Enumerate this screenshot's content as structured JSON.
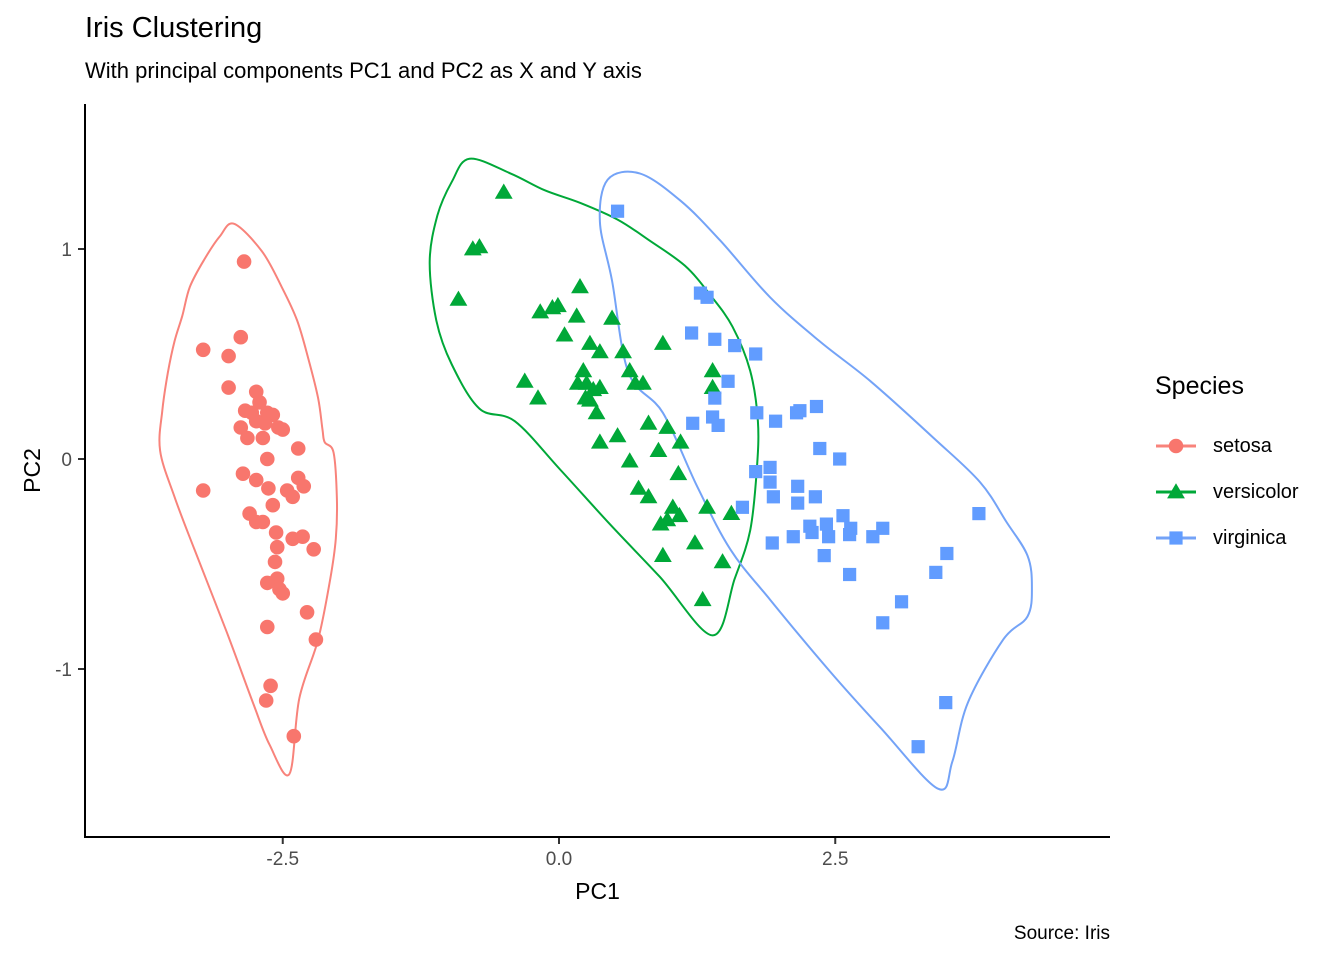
{
  "chart_data": {
    "type": "scatter",
    "title": "Iris Clustering",
    "subtitle": "With principal components PC1 and PC2 as X and Y axis",
    "caption": "Source: Iris",
    "xlabel": "PC1",
    "ylabel": "PC2",
    "xlim": [
      -4.3,
      5.0
    ],
    "ylim": [
      -1.8,
      1.69
    ],
    "x_ticks": {
      "values": [
        -2.5,
        0,
        2.5
      ],
      "labels": [
        "-2.5",
        "0.0",
        "2.5"
      ]
    },
    "y_ticks": {
      "values": [
        -1,
        0,
        1
      ],
      "labels": [
        "-1",
        "0",
        "1"
      ]
    },
    "grid": false,
    "legend_position": "right",
    "legend_title": "Species",
    "series": [
      {
        "name": "setosa",
        "marker": "circle",
        "color": "#F8766D",
        "hull_color": "#F8837B",
        "points": [
          [
            -2.85,
            0.94
          ],
          [
            -2.88,
            0.58
          ],
          [
            -3.22,
            0.52
          ],
          [
            -2.99,
            0.49
          ],
          [
            -2.99,
            0.34
          ],
          [
            -2.74,
            0.32
          ],
          [
            -2.71,
            0.27
          ],
          [
            -2.84,
            0.23
          ],
          [
            -2.78,
            0.22
          ],
          [
            -2.64,
            0.22
          ],
          [
            -2.59,
            0.21
          ],
          [
            -2.74,
            0.18
          ],
          [
            -2.66,
            0.17
          ],
          [
            -2.54,
            0.15
          ],
          [
            -2.88,
            0.15
          ],
          [
            -2.82,
            0.1
          ],
          [
            -2.68,
            0.1
          ],
          [
            -2.5,
            0.14
          ],
          [
            -2.36,
            0.05
          ],
          [
            -2.64,
            0.0
          ],
          [
            -2.86,
            -0.07
          ],
          [
            -2.74,
            -0.1
          ],
          [
            -2.63,
            -0.14
          ],
          [
            -2.36,
            -0.09
          ],
          [
            -2.31,
            -0.13
          ],
          [
            -3.22,
            -0.15
          ],
          [
            -2.46,
            -0.15
          ],
          [
            -2.41,
            -0.18
          ],
          [
            -2.59,
            -0.22
          ],
          [
            -2.8,
            -0.26
          ],
          [
            -2.74,
            -0.3
          ],
          [
            -2.68,
            -0.3
          ],
          [
            -2.56,
            -0.35
          ],
          [
            -2.41,
            -0.38
          ],
          [
            -2.32,
            -0.37
          ],
          [
            -2.22,
            -0.43
          ],
          [
            -2.55,
            -0.42
          ],
          [
            -2.57,
            -0.49
          ],
          [
            -2.55,
            -0.57
          ],
          [
            -2.64,
            -0.59
          ],
          [
            -2.53,
            -0.62
          ],
          [
            -2.5,
            -0.64
          ],
          [
            -2.28,
            -0.73
          ],
          [
            -2.64,
            -0.8
          ],
          [
            -2.2,
            -0.86
          ],
          [
            -2.61,
            -1.08
          ],
          [
            -2.65,
            -1.15
          ],
          [
            -2.4,
            -1.32
          ]
        ],
        "hull": [
          [
            -2.94,
            1.12
          ],
          [
            -2.69,
            0.99
          ],
          [
            -2.51,
            0.82
          ],
          [
            -2.37,
            0.66
          ],
          [
            -2.27,
            0.48
          ],
          [
            -2.18,
            0.29
          ],
          [
            -2.14,
            0.14
          ],
          [
            -2.12,
            0.08
          ],
          [
            -2.04,
            0.03
          ],
          [
            -2.01,
            -0.19
          ],
          [
            -2.02,
            -0.38
          ],
          [
            -2.07,
            -0.57
          ],
          [
            -2.18,
            -0.86
          ],
          [
            -2.35,
            -1.14
          ],
          [
            -2.44,
            -1.5
          ],
          [
            -2.62,
            -1.36
          ],
          [
            -2.77,
            -1.16
          ],
          [
            -3.01,
            -0.82
          ],
          [
            -3.3,
            -0.43
          ],
          [
            -3.48,
            -0.18
          ],
          [
            -3.61,
            0.04
          ],
          [
            -3.59,
            0.23
          ],
          [
            -3.54,
            0.41
          ],
          [
            -3.48,
            0.56
          ],
          [
            -3.41,
            0.68
          ],
          [
            -3.34,
            0.82
          ],
          [
            -3.21,
            0.95
          ],
          [
            -3.07,
            1.06
          ]
        ]
      },
      {
        "name": "versicolor",
        "marker": "triangle",
        "color": "#00A838",
        "hull_color": "#00A838",
        "points": [
          [
            -0.5,
            1.27
          ],
          [
            -0.72,
            1.01
          ],
          [
            -0.78,
            1.0
          ],
          [
            -0.91,
            0.76
          ],
          [
            0.19,
            0.82
          ],
          [
            -0.17,
            0.7
          ],
          [
            -0.06,
            0.72
          ],
          [
            -0.01,
            0.73
          ],
          [
            0.16,
            0.68
          ],
          [
            0.48,
            0.67
          ],
          [
            0.05,
            0.59
          ],
          [
            0.28,
            0.55
          ],
          [
            0.37,
            0.51
          ],
          [
            0.58,
            0.51
          ],
          [
            0.94,
            0.55
          ],
          [
            0.64,
            0.42
          ],
          [
            0.69,
            0.36
          ],
          [
            0.76,
            0.36
          ],
          [
            -0.31,
            0.37
          ],
          [
            0.22,
            0.42
          ],
          [
            0.17,
            0.36
          ],
          [
            0.25,
            0.36
          ],
          [
            0.31,
            0.33
          ],
          [
            0.37,
            0.34
          ],
          [
            0.24,
            0.29
          ],
          [
            0.28,
            0.28
          ],
          [
            -0.19,
            0.29
          ],
          [
            1.39,
            0.42
          ],
          [
            1.39,
            0.34
          ],
          [
            0.34,
            0.22
          ],
          [
            0.81,
            0.17
          ],
          [
            0.98,
            0.15
          ],
          [
            0.37,
            0.08
          ],
          [
            0.53,
            0.11
          ],
          [
            0.9,
            0.04
          ],
          [
            1.1,
            0.08
          ],
          [
            0.64,
            -0.01
          ],
          [
            1.08,
            -0.07
          ],
          [
            0.72,
            -0.14
          ],
          [
            0.81,
            -0.18
          ],
          [
            1.03,
            -0.23
          ],
          [
            1.09,
            -0.27
          ],
          [
            1.34,
            -0.23
          ],
          [
            0.92,
            -0.31
          ],
          [
            0.98,
            -0.29
          ],
          [
            1.56,
            -0.26
          ],
          [
            1.23,
            -0.4
          ],
          [
            0.94,
            -0.46
          ],
          [
            1.48,
            -0.49
          ],
          [
            1.3,
            -0.67
          ]
        ],
        "hull": [
          [
            -0.81,
            1.43
          ],
          [
            -0.44,
            1.36
          ],
          [
            -0.13,
            1.28
          ],
          [
            0.19,
            1.22
          ],
          [
            0.53,
            1.14
          ],
          [
            0.82,
            1.04
          ],
          [
            1.14,
            0.92
          ],
          [
            1.37,
            0.78
          ],
          [
            1.57,
            0.63
          ],
          [
            1.73,
            0.42
          ],
          [
            1.8,
            0.18
          ],
          [
            1.79,
            -0.05
          ],
          [
            1.73,
            -0.34
          ],
          [
            1.59,
            -0.57
          ],
          [
            1.39,
            -0.84
          ],
          [
            0.91,
            -0.56
          ],
          [
            0.46,
            -0.31
          ],
          [
            0.01,
            -0.05
          ],
          [
            -0.4,
            0.18
          ],
          [
            -0.72,
            0.24
          ],
          [
            -0.97,
            0.45
          ],
          [
            -1.11,
            0.66
          ],
          [
            -1.17,
            0.94
          ],
          [
            -1.1,
            1.16
          ],
          [
            -0.97,
            1.32
          ]
        ]
      },
      {
        "name": "virginica",
        "marker": "square",
        "color": "#619CFF",
        "hull_color": "#74A3F7",
        "points": [
          [
            0.53,
            1.18
          ],
          [
            1.28,
            0.79
          ],
          [
            1.34,
            0.77
          ],
          [
            1.2,
            0.6
          ],
          [
            1.41,
            0.57
          ],
          [
            1.59,
            0.54
          ],
          [
            1.78,
            0.5
          ],
          [
            1.53,
            0.37
          ],
          [
            1.41,
            0.29
          ],
          [
            1.21,
            0.17
          ],
          [
            1.39,
            0.2
          ],
          [
            1.44,
            0.16
          ],
          [
            1.79,
            0.22
          ],
          [
            1.96,
            0.18
          ],
          [
            2.15,
            0.22
          ],
          [
            2.18,
            0.23
          ],
          [
            2.33,
            0.25
          ],
          [
            1.78,
            -0.06
          ],
          [
            1.91,
            -0.04
          ],
          [
            1.91,
            -0.11
          ],
          [
            1.94,
            -0.18
          ],
          [
            2.36,
            0.05
          ],
          [
            2.54,
            0.0
          ],
          [
            1.66,
            -0.23
          ],
          [
            2.16,
            -0.13
          ],
          [
            2.16,
            -0.21
          ],
          [
            2.32,
            -0.18
          ],
          [
            1.93,
            -0.4
          ],
          [
            2.12,
            -0.37
          ],
          [
            2.27,
            -0.32
          ],
          [
            2.29,
            -0.35
          ],
          [
            2.42,
            -0.31
          ],
          [
            2.44,
            -0.37
          ],
          [
            2.57,
            -0.27
          ],
          [
            2.63,
            -0.36
          ],
          [
            2.64,
            -0.33
          ],
          [
            2.84,
            -0.37
          ],
          [
            2.93,
            -0.33
          ],
          [
            3.8,
            -0.26
          ],
          [
            2.4,
            -0.46
          ],
          [
            3.51,
            -0.45
          ],
          [
            2.63,
            -0.55
          ],
          [
            3.41,
            -0.54
          ],
          [
            3.1,
            -0.68
          ],
          [
            2.93,
            -0.78
          ],
          [
            3.5,
            -1.16
          ],
          [
            3.25,
            -1.37
          ]
        ],
        "hull": [
          [
            0.44,
            1.33
          ],
          [
            0.73,
            1.36
          ],
          [
            1.1,
            1.23
          ],
          [
            1.46,
            1.04
          ],
          [
            1.91,
            0.77
          ],
          [
            2.36,
            0.56
          ],
          [
            2.82,
            0.37
          ],
          [
            3.39,
            0.1
          ],
          [
            3.81,
            -0.11
          ],
          [
            4.05,
            -0.3
          ],
          [
            4.24,
            -0.46
          ],
          [
            4.28,
            -0.61
          ],
          [
            4.24,
            -0.75
          ],
          [
            4.02,
            -0.86
          ],
          [
            3.7,
            -1.16
          ],
          [
            3.56,
            -1.44
          ],
          [
            3.43,
            -1.57
          ],
          [
            2.91,
            -1.28
          ],
          [
            2.45,
            -1.01
          ],
          [
            1.91,
            -0.67
          ],
          [
            1.55,
            -0.43
          ],
          [
            1.25,
            -0.13
          ],
          [
            0.94,
            0.22
          ],
          [
            0.63,
            0.41
          ],
          [
            0.48,
            0.85
          ],
          [
            0.37,
            1.13
          ]
        ]
      }
    ]
  }
}
